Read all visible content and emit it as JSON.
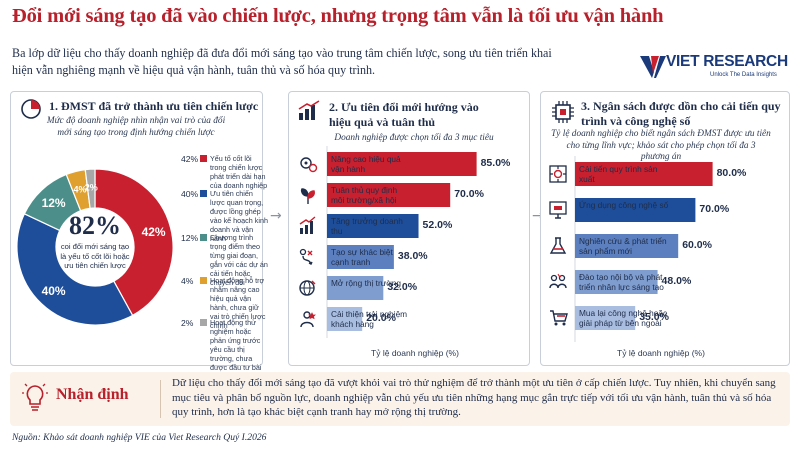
{
  "header": {
    "title": "Đổi mới sáng tạo đã vào chiến lược, nhưng trọng tâm vẫn là tối ưu vận hành",
    "subtitle": "Ba lớp dữ liệu cho thấy doanh nghiệp đã đưa đổi mới sáng tạo vào trung tâm chiến lược, song ưu tiên triển khai hiện vẫn nghiêng mạnh về hiệu quả vận hành, tuân thủ và số hóa quy trình."
  },
  "brand": {
    "name": "VIET RESEARCH",
    "tagline": "Unlock The Data Insights",
    "colors": {
      "navy": "#1b3a7a",
      "red": "#c8202f"
    }
  },
  "panel1": {
    "number_title": "1. ĐMST đã trở thành ưu tiên chiến lược",
    "note": "Mức độ doanh nghiệp nhìn nhận vai trò của đổi mới sáng tạo trong định hướng chiến lược",
    "center_value": "82%",
    "center_text": "coi đổi mới sáng tạo là yếu tố cốt lõi hoặc ưu tiên chiến lược"
  },
  "panel2": {
    "number_title": "2. Ưu tiên đổi mới hướng vào hiệu quả và tuân thủ",
    "note": "Doanh nghiệp được chọn tối đa 3 mục tiêu"
  },
  "panel3": {
    "number_title": "3. Ngân sách được dồn cho cải tiến quy trình và công nghệ số",
    "note": "Tỷ lệ doanh nghiệp cho biết ngân sách ĐMST được ưu tiên cho từng lĩnh vực; khảo sát cho phép chọn tối đa 3 phương án"
  },
  "chart_data": [
    {
      "type": "pie",
      "title": "1. ĐMST đã trở thành ưu tiên chiến lược",
      "slices": [
        {
          "label": "Yếu tố cốt lõi trong chiến lược phát triển dài hạn của doanh nghiệp",
          "value": 42,
          "color": "#c8202f"
        },
        {
          "label": "Ưu tiên chiến lược quan trọng, được lồng ghép vào kế hoạch kinh doanh và vận hành",
          "value": 40,
          "color": "#1e4e9a"
        },
        {
          "label": "Chương trình trọng điểm theo từng giai đoạn, gắn với các dự án cải tiến hoặc chuyển đổi",
          "value": 12,
          "color": "#4c8f8a"
        },
        {
          "label": "Hoạt động hỗ trợ nhằm nâng cao hiệu quả vận hành, chưa giữ vai trò chiến lược chính",
          "value": 4,
          "color": "#e0a030"
        },
        {
          "label": "Hoạt động thử nghiệm hoặc phản ứng trước yêu cầu thị trường, chưa được đầu tư bài bản",
          "value": 2,
          "color": "#a7a7a7"
        }
      ],
      "slice_labels": [
        "42%",
        "40%",
        "12%",
        "4%",
        "2%"
      ],
      "legend_pcts": [
        "42%",
        "40%",
        "12%",
        "4%",
        "2%"
      ]
    },
    {
      "type": "bar",
      "orientation": "horizontal",
      "title": "2. Ưu tiên đổi mới hướng vào hiệu quả và tuân thủ",
      "categories": [
        "Nâng cao hiệu quả vận hành",
        "Tuân thủ quy định môi trường/xã hội",
        "Tăng trưởng doanh thu",
        "Tạo sự khác biệt cạnh tranh",
        "Mở rộng thị trường",
        "Cải thiện trải nghiệm khách hàng"
      ],
      "values": [
        85.0,
        70.0,
        52.0,
        38.0,
        32.0,
        20.0
      ],
      "value_labels": [
        "85.0%",
        "70.0%",
        "52.0%",
        "38.0%",
        "32.0%",
        "20.0%"
      ],
      "colors": [
        "#c8202f",
        "#c8202f",
        "#1e4e9a",
        "#5b7fbf",
        "#7f9dcf",
        "#a9bde0"
      ],
      "icons": [
        "gears-icon",
        "plant-icon",
        "bar-growth-icon",
        "strategy-icon",
        "globe-icon",
        "rating-icon"
      ],
      "xlabel": "Tỷ lệ doanh nghiệp (%)",
      "xlim": [
        0,
        100
      ]
    },
    {
      "type": "bar",
      "orientation": "horizontal",
      "title": "3. Ngân sách được dồn cho cải tiến quy trình và công nghệ số",
      "categories": [
        "Cải tiến quy trình sản xuất",
        "Ứng dụng công nghệ số",
        "Nghiên cứu & phát triển sản phẩm mới",
        "Đào tạo nội bộ và phát triển nhân lực sáng tạo",
        "Mua lại công nghệ hoặc giải pháp từ bên ngoài"
      ],
      "values": [
        80.0,
        70.0,
        60.0,
        48.0,
        35.0
      ],
      "value_labels": [
        "80.0%",
        "70.0%",
        "60.0%",
        "48.0%",
        "35.0%"
      ],
      "colors": [
        "#c8202f",
        "#1e4e9a",
        "#5b7fbf",
        "#7f9dcf",
        "#a9bde0"
      ],
      "icons": [
        "process-icon",
        "digital-icon",
        "flask-icon",
        "training-icon",
        "cart-icon"
      ],
      "xlabel": "Tỷ lệ doanh nghiệp (%)",
      "xlim": [
        0,
        100
      ]
    }
  ],
  "insight": {
    "heading": "Nhận định",
    "body": "Dữ liệu cho thấy đổi mới sáng tạo đã vượt khỏi vai trò thử nghiệm để trở thành một ưu tiên ở cấp chiến lược. Tuy nhiên, khi chuyển sang mục tiêu và phân bổ nguồn lực, doanh nghiệp vẫn chủ yếu ưu tiên những hạng mục gắn trực tiếp với tối ưu vận hành, tuân thủ và số hóa quy trình, hơn là tạo khác biệt cạnh tranh hay mở rộng thị trường."
  },
  "source": "Nguồn: Khảo sát doanh nghiệp VIE của Viet Research Quý I.2026"
}
